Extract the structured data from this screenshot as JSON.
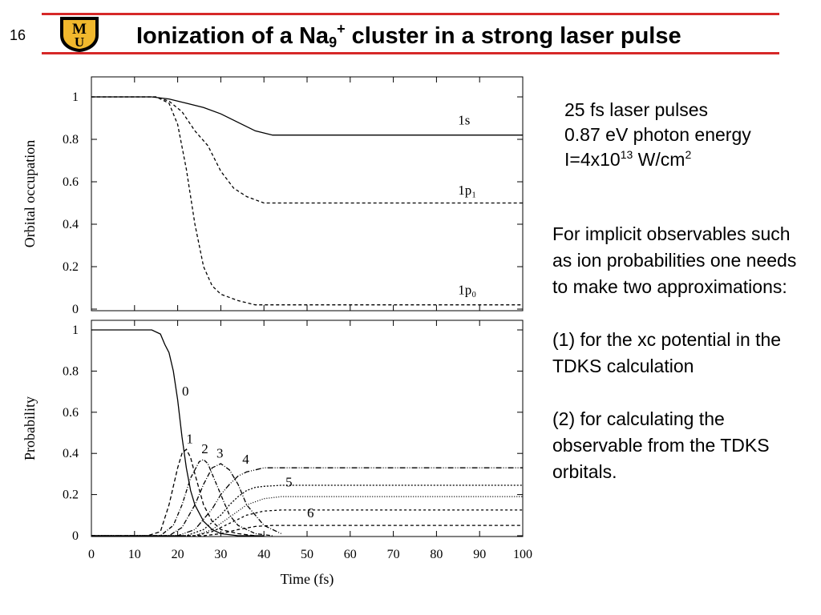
{
  "slide": {
    "number": "16",
    "title_main": "Ionization of a Na",
    "title_sub": "9",
    "title_sup": "+",
    "title_rest": " cluster in a strong laser pulse"
  },
  "logo": {
    "letters": [
      "M",
      "U"
    ],
    "colors": {
      "gold": "#f1b82d",
      "black": "#000000"
    }
  },
  "colors": {
    "rule": "#d62828",
    "text": "#000000"
  },
  "laser_params": {
    "line1": "25 fs laser pulses",
    "line2": "0.87 eV photon energy",
    "line3_prefix": "I=4x10",
    "line3_exp": "13",
    "line3_unit": " W/cm",
    "line3_unit_exp": "2"
  },
  "body": {
    "para1": "For implicit observables such as ion probabilities one needs to make two approximations:",
    "para2": "(1)  for the xc potential in the TDKS calculation",
    "para3": "(2) for calculating the observable from the TDKS orbitals."
  },
  "chart_data": [
    {
      "type": "line",
      "ylabel": "Orbital occupation",
      "xlabel": "",
      "xlim": [
        0,
        100
      ],
      "ylim": [
        0,
        1.05
      ],
      "y_ticks": [
        0,
        0.2,
        0.4,
        0.6,
        0.8,
        1
      ],
      "y_tick_labels": [
        "0",
        "0.2",
        "0.4",
        "0.6",
        "0.8",
        "1"
      ],
      "series": [
        {
          "name": "1s",
          "label_text": "1s",
          "label_pos": [
            85,
            0.87
          ],
          "dash": "",
          "x": [
            0,
            14,
            18,
            22,
            26,
            30,
            34,
            38,
            42,
            100
          ],
          "y": [
            1,
            1,
            0.99,
            0.97,
            0.95,
            0.92,
            0.88,
            0.84,
            0.82,
            0.82
          ]
        },
        {
          "name": "1p1",
          "label_text": "1p₁",
          "label_pos": [
            85,
            0.54
          ],
          "dash": "4,3",
          "x": [
            0,
            15,
            18,
            21,
            24,
            27,
            30,
            33,
            36,
            40,
            100
          ],
          "y": [
            1,
            1,
            0.98,
            0.93,
            0.84,
            0.77,
            0.65,
            0.57,
            0.53,
            0.5,
            0.5
          ]
        },
        {
          "name": "1p0",
          "label_text": "1p₀",
          "label_pos": [
            85,
            0.07
          ],
          "dash": "4,3",
          "x": [
            0,
            15,
            18,
            20,
            22,
            24,
            26,
            28,
            30,
            34,
            38,
            42,
            100
          ],
          "y": [
            1,
            1,
            0.97,
            0.87,
            0.66,
            0.4,
            0.2,
            0.11,
            0.07,
            0.04,
            0.02,
            0.02,
            0.02
          ]
        }
      ]
    },
    {
      "type": "line",
      "ylabel": "Probability",
      "xlabel": "Time (fs)",
      "xlim": [
        0,
        100
      ],
      "ylim": [
        0,
        1.05
      ],
      "x_ticks": [
        0,
        10,
        20,
        30,
        40,
        50,
        60,
        70,
        80,
        90,
        100
      ],
      "x_tick_labels": [
        "0",
        "10",
        "20",
        "30",
        "40",
        "50",
        "60",
        "70",
        "80",
        "90",
        "100"
      ],
      "y_ticks": [
        0,
        0.2,
        0.4,
        0.6,
        0.8,
        1
      ],
      "y_tick_labels": [
        "0",
        "0.2",
        "0.4",
        "0.6",
        "0.8",
        "1"
      ],
      "series": [
        {
          "name": "0",
          "label_text": "0",
          "label_pos": [
            21,
            0.68
          ],
          "dash": "",
          "x": [
            0,
            14,
            16,
            17,
            18,
            19,
            20,
            21,
            22,
            23,
            24,
            26,
            28,
            30,
            34,
            40
          ],
          "y": [
            1,
            1,
            0.98,
            0.93,
            0.89,
            0.8,
            0.66,
            0.48,
            0.33,
            0.22,
            0.15,
            0.07,
            0.03,
            0.01,
            0,
            0
          ]
        },
        {
          "name": "1",
          "label_text": "1",
          "label_pos": [
            22,
            0.45
          ],
          "dash": "5,3",
          "x": [
            0,
            13,
            16,
            18,
            20,
            21,
            22,
            23,
            24,
            26,
            28,
            30,
            34,
            38
          ],
          "y": [
            0,
            0,
            0.02,
            0.15,
            0.33,
            0.4,
            0.42,
            0.38,
            0.3,
            0.15,
            0.07,
            0.03,
            0.01,
            0
          ]
        },
        {
          "name": "2",
          "label_text": "2",
          "label_pos": [
            25.5,
            0.4
          ],
          "dash": "5,2,1,2",
          "x": [
            0,
            16,
            19,
            21,
            23,
            25,
            26,
            27,
            28,
            30,
            32,
            34,
            38,
            42
          ],
          "y": [
            0,
            0,
            0.05,
            0.15,
            0.28,
            0.36,
            0.37,
            0.35,
            0.3,
            0.2,
            0.1,
            0.05,
            0.01,
            0
          ]
        },
        {
          "name": "3",
          "label_text": "3",
          "label_pos": [
            29,
            0.38
          ],
          "dash": "6,2,1,2",
          "x": [
            0,
            18,
            21,
            24,
            26,
            28,
            30,
            32,
            34,
            36,
            40,
            44
          ],
          "y": [
            0,
            0,
            0.04,
            0.15,
            0.25,
            0.33,
            0.35,
            0.32,
            0.25,
            0.15,
            0.05,
            0.01
          ]
        },
        {
          "name": "4",
          "label_text": "4",
          "label_pos": [
            35,
            0.35
          ],
          "dash": "7,2,1,2,1,2",
          "x": [
            0,
            20,
            24,
            28,
            30,
            32,
            34,
            36,
            38,
            40,
            44,
            100
          ],
          "y": [
            0,
            0,
            0.03,
            0.13,
            0.2,
            0.25,
            0.29,
            0.31,
            0.32,
            0.33,
            0.33,
            0.33
          ]
        },
        {
          "name": "5",
          "label_text": "5",
          "label_pos": [
            45,
            0.24
          ],
          "dash": "2,2",
          "x": [
            0,
            22,
            26,
            30,
            32,
            34,
            36,
            38,
            40,
            44,
            100
          ],
          "y": [
            0,
            0,
            0.03,
            0.1,
            0.15,
            0.19,
            0.22,
            0.235,
            0.24,
            0.245,
            0.245
          ]
        },
        {
          "name": "5b",
          "label_text": "",
          "label_pos": [
            0,
            0
          ],
          "dash": "1,2",
          "x": [
            0,
            24,
            28,
            32,
            36,
            40,
            44,
            100
          ],
          "y": [
            0,
            0,
            0.03,
            0.09,
            0.15,
            0.18,
            0.19,
            0.19
          ]
        },
        {
          "name": "6",
          "label_text": "6",
          "label_pos": [
            50,
            0.09
          ],
          "dash": "3,3",
          "x": [
            0,
            24,
            28,
            32,
            36,
            40,
            44,
            100
          ],
          "y": [
            0,
            0,
            0.02,
            0.06,
            0.1,
            0.12,
            0.125,
            0.125
          ]
        },
        {
          "name": "7",
          "label_text": "",
          "label_pos": [
            0,
            0
          ],
          "dash": "4,3",
          "x": [
            0,
            26,
            30,
            34,
            38,
            42,
            100
          ],
          "y": [
            0,
            0,
            0.01,
            0.03,
            0.045,
            0.05,
            0.05
          ]
        }
      ]
    }
  ]
}
